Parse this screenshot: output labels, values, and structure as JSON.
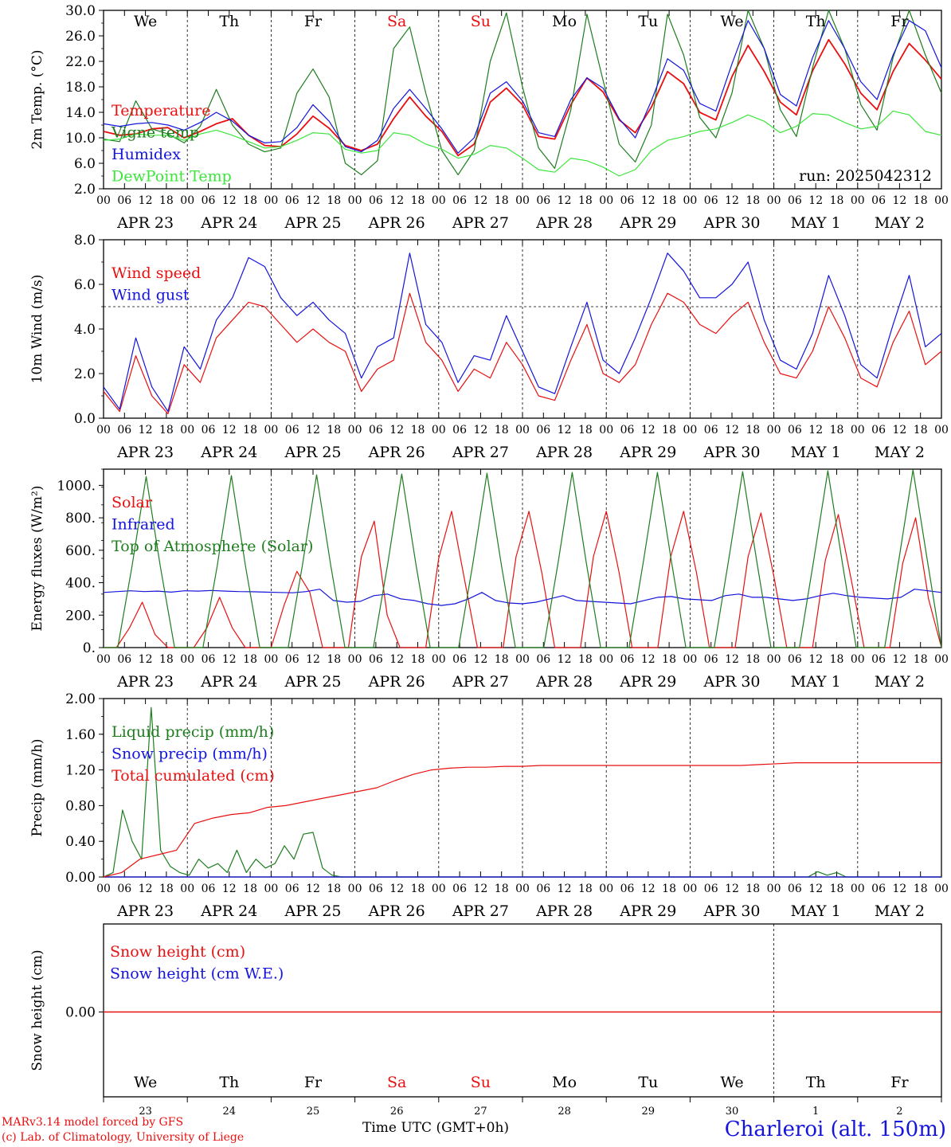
{
  "run_label": "run: 2025042312",
  "location_label": "Charleroi (alt. 150m)",
  "model_credit": "MARv3.14 model forced by GFS",
  "lab_credit": "(c) Lab. of Climatology, University of Liege",
  "time_label": "Time UTC (GMT+0h)",
  "colors": {
    "red": "#e81010",
    "green": "#1e7d1e",
    "blue": "#1414dc",
    "lime": "#3ce63c",
    "axis": "#000000"
  },
  "days": [
    {
      "dow": "We",
      "date": "APR 23",
      "num": "23",
      "weekend": false
    },
    {
      "dow": "Th",
      "date": "APR 24",
      "num": "24",
      "weekend": false
    },
    {
      "dow": "Fr",
      "date": "APR 25",
      "num": "25",
      "weekend": false
    },
    {
      "dow": "Sa",
      "date": "APR 26",
      "num": "26",
      "weekend": true
    },
    {
      "dow": "Su",
      "date": "APR 27",
      "num": "27",
      "weekend": true
    },
    {
      "dow": "Mo",
      "date": "APR 28",
      "num": "28",
      "weekend": false
    },
    {
      "dow": "Tu",
      "date": "APR 29",
      "num": "29",
      "weekend": false
    },
    {
      "dow": "We",
      "date": "APR 30",
      "num": "30",
      "weekend": false
    },
    {
      "dow": "Th",
      "date": "MAY  1",
      "num": "1",
      "weekend": false
    },
    {
      "dow": "Fr",
      "date": "MAY  2",
      "num": "2",
      "weekend": false
    }
  ],
  "hour_ticks": [
    "00",
    "06",
    "12",
    "18"
  ],
  "chart_data": [
    {
      "type": "line",
      "ylabel": "2m Temp. (°C)",
      "ylim": [
        2,
        30
      ],
      "yticks": [
        "2.0",
        "6.0",
        "10.0",
        "14.0",
        "18.0",
        "22.0",
        "26.0",
        "30.0"
      ],
      "series": [
        {
          "name": "Temperature",
          "color": "#e81010",
          "values": [
            11,
            10.4,
            10.6,
            11.4,
            11.6,
            10,
            11,
            12.2,
            13,
            10.4,
            8.8,
            8.6,
            10.6,
            13.4,
            11.5,
            8.8,
            8,
            9,
            13,
            16.4,
            13.4,
            11,
            7.2,
            9,
            15.6,
            17.8,
            15.2,
            10.2,
            9.8,
            15.2,
            19.4,
            17.2,
            12.8,
            10.8,
            14.8,
            20.4,
            18.5,
            14,
            12.8,
            19.6,
            24.5,
            20.4,
            15.6,
            13.6,
            20.5,
            25.4,
            21.6,
            17,
            14.4,
            20.4,
            24.8,
            22.2,
            19.2
          ]
        },
        {
          "name": "Vigne temp",
          "color": "#1e7d1e",
          "values": [
            9.8,
            9.4,
            15.8,
            11.4,
            10.6,
            9.2,
            11.8,
            17.6,
            12,
            9,
            7.8,
            8.4,
            17,
            20.8,
            16.4,
            6,
            4.2,
            6.4,
            24,
            27.4,
            17,
            8,
            4.2,
            8,
            22,
            29.6,
            18,
            8.4,
            5.2,
            14.4,
            29.4,
            19,
            9,
            6.2,
            12,
            29.4,
            23,
            13.2,
            10,
            17,
            30,
            24,
            14.4,
            10.2,
            21,
            30,
            24,
            15.2,
            11.2,
            22.6,
            30,
            23,
            17
          ]
        },
        {
          "name": "Humidex",
          "color": "#1414dc",
          "values": [
            12.2,
            11.8,
            12.2,
            12.4,
            12,
            11.2,
            12.4,
            14,
            12.6,
            10.4,
            9.2,
            9.4,
            11.6,
            15.2,
            12.6,
            8.6,
            7.8,
            9.6,
            14.6,
            17.6,
            14.6,
            11.4,
            7.6,
            10,
            17,
            18.8,
            15.8,
            10.8,
            10.2,
            16,
            19.4,
            17.8,
            13,
            10,
            15.8,
            22.4,
            20.6,
            15.4,
            14.2,
            21.6,
            28.4,
            24,
            16.8,
            15,
            22.6,
            28.4,
            24,
            18.8,
            16,
            23,
            28.4,
            26.8,
            21
          ]
        },
        {
          "name": "DewPoint Temp",
          "color": "#3ce63c",
          "values": [
            9.6,
            9.8,
            10.6,
            10.4,
            10.4,
            9.6,
            10.6,
            11.2,
            10.4,
            9.4,
            8.4,
            8.6,
            9.6,
            10.8,
            10.6,
            8.2,
            7.6,
            8,
            10.8,
            10.4,
            9,
            8.2,
            6.8,
            7.4,
            8.8,
            8.4,
            6.8,
            5,
            4.6,
            6.8,
            6.4,
            5.4,
            4,
            5,
            8,
            9.6,
            10.2,
            11,
            11.4,
            12.4,
            13.6,
            12.6,
            10.8,
            11.8,
            13.8,
            13.6,
            12.4,
            11.4,
            11.8,
            14.2,
            13.6,
            11,
            10.4
          ]
        }
      ]
    },
    {
      "type": "line",
      "ylabel": "10m Wind (m/s)",
      "ylim": [
        0,
        8
      ],
      "yticks": [
        "0.0",
        "2.0",
        "4.0",
        "6.0",
        "8.0"
      ],
      "reference_line": 5,
      "series": [
        {
          "name": "Wind speed",
          "color": "#e81010",
          "values": [
            1.2,
            0.3,
            2.8,
            1,
            0.2,
            2.4,
            1.6,
            3.6,
            4.4,
            5.2,
            5,
            4.2,
            3.4,
            4,
            3.4,
            3,
            1.2,
            2.2,
            2.6,
            5.6,
            3.4,
            2.6,
            1.2,
            2.2,
            1.8,
            3.4,
            2.4,
            1,
            0.8,
            2.6,
            4.2,
            2,
            1.6,
            2.4,
            4.2,
            5.6,
            5.2,
            4.2,
            3.8,
            4.6,
            5.2,
            3.4,
            2,
            1.8,
            3,
            5,
            3.6,
            1.8,
            1.4,
            3.4,
            4.8,
            2.4,
            3
          ]
        },
        {
          "name": "Wind gust",
          "color": "#1414dc",
          "values": [
            1.4,
            0.4,
            3.6,
            1.4,
            0.3,
            3.2,
            2.2,
            4.4,
            5.4,
            7.2,
            6.8,
            5.4,
            4.6,
            5.2,
            4.4,
            3.8,
            1.8,
            3.2,
            3.6,
            7.4,
            4.2,
            3.4,
            1.6,
            2.8,
            2.6,
            4.6,
            3,
            1.4,
            1.1,
            3.2,
            5.2,
            2.6,
            2,
            3.6,
            5.4,
            7.4,
            6.6,
            5.4,
            5.4,
            6,
            7,
            4.4,
            2.6,
            2.2,
            3.8,
            6.4,
            4.6,
            2.4,
            1.8,
            4.2,
            6.4,
            3.2,
            3.8
          ]
        }
      ]
    },
    {
      "type": "line",
      "ylabel": "Energy fluxes (W/m²)",
      "ylim": [
        0,
        1100
      ],
      "yticks": [
        "0.",
        "200.",
        "400.",
        "600.",
        "800.",
        "1000."
      ],
      "series": [
        {
          "name": "Solar",
          "color": "#e81010",
          "values": [
            0,
            0,
            120,
            280,
            80,
            0,
            0,
            0,
            120,
            310,
            120,
            0,
            0,
            0,
            260,
            470,
            340,
            0,
            0,
            0,
            560,
            780,
            200,
            0,
            0,
            0,
            550,
            840,
            420,
            0,
            0,
            0,
            560,
            840,
            460,
            0,
            0,
            0,
            560,
            840,
            460,
            0,
            0,
            0,
            560,
            840,
            460,
            0,
            0,
            0,
            560,
            830,
            440,
            0,
            0,
            0,
            540,
            820,
            420,
            0,
            0,
            0,
            520,
            800,
            300,
            0
          ]
        },
        {
          "name": "Infrared",
          "color": "#1414dc",
          "values": [
            340,
            345,
            350,
            345,
            348,
            342,
            350,
            348,
            352,
            348,
            345,
            344,
            342,
            340,
            338,
            345,
            360,
            290,
            280,
            285,
            320,
            330,
            300,
            290,
            270,
            260,
            270,
            300,
            340,
            290,
            275,
            270,
            280,
            300,
            320,
            290,
            285,
            280,
            275,
            270,
            290,
            310,
            315,
            300,
            295,
            290,
            320,
            330,
            310,
            310,
            300,
            290,
            300,
            320,
            335,
            320,
            310,
            305,
            300,
            310,
            360,
            350,
            340
          ]
        },
        {
          "name": "Top of Atmosphere (Solar)",
          "color": "#1e7d1e",
          "values": [
            0,
            0,
            500,
            1055,
            500,
            0,
            0,
            0,
            500,
            1060,
            500,
            0,
            0,
            0,
            505,
            1065,
            505,
            0,
            0,
            0,
            510,
            1070,
            510,
            0,
            0,
            0,
            515,
            1075,
            515,
            0,
            0,
            0,
            520,
            1080,
            520,
            0,
            0,
            0,
            525,
            1080,
            525,
            0,
            0,
            0,
            530,
            1085,
            530,
            0,
            0,
            0,
            535,
            1090,
            535,
            0,
            0,
            0,
            540,
            1095,
            540,
            0
          ]
        }
      ]
    },
    {
      "type": "line",
      "ylabel": "Precip (mm/h)",
      "ylim": [
        0,
        2
      ],
      "yticks": [
        "0.00",
        "0.40",
        "0.80",
        "1.20",
        "1.60",
        "2.00"
      ],
      "series": [
        {
          "name": "Liquid precip (mm/h)",
          "color": "#1e7d1e",
          "values": [
            0,
            0.05,
            0.75,
            0.4,
            0.2,
            1.9,
            0.3,
            0.12,
            0.05,
            0.02,
            0.2,
            0.1,
            0.15,
            0.05,
            0.3,
            0.05,
            0.2,
            0.1,
            0.15,
            0.35,
            0.2,
            0.48,
            0.5,
            0.1,
            0.02,
            0,
            0,
            0,
            0,
            0,
            0,
            0,
            0,
            0,
            0,
            0,
            0,
            0,
            0,
            0,
            0,
            0,
            0,
            0,
            0,
            0,
            0,
            0,
            0,
            0,
            0,
            0,
            0,
            0,
            0,
            0,
            0,
            0,
            0,
            0,
            0,
            0,
            0,
            0,
            0,
            0,
            0,
            0,
            0,
            0,
            0,
            0,
            0,
            0,
            0,
            0.06,
            0.02,
            0.05,
            0,
            0,
            0,
            0,
            0,
            0,
            0,
            0,
            0,
            0,
            0
          ]
        },
        {
          "name": "Snow precip (mm/h)",
          "color": "#1414dc",
          "values": [
            0,
            0,
            0,
            0,
            0,
            0,
            0,
            0,
            0,
            0,
            0,
            0,
            0,
            0,
            0,
            0,
            0,
            0,
            0,
            0,
            0,
            0,
            0,
            0,
            0,
            0,
            0,
            0,
            0,
            0,
            0,
            0,
            0,
            0,
            0,
            0,
            0,
            0,
            0,
            0,
            0,
            0,
            0,
            0,
            0,
            0,
            0,
            0,
            0,
            0,
            0,
            0,
            0,
            0,
            0,
            0,
            0,
            0,
            0,
            0,
            0,
            0,
            0,
            0,
            0,
            0,
            0,
            0,
            0,
            0,
            0,
            0,
            0,
            0,
            0,
            0,
            0,
            0,
            0,
            0,
            0,
            0,
            0,
            0,
            0,
            0,
            0,
            0,
            0
          ]
        },
        {
          "name": "Total cumulated (cm)",
          "color": "#e81010",
          "values": [
            0,
            0.05,
            0.2,
            0.25,
            0.3,
            0.6,
            0.66,
            0.7,
            0.72,
            0.78,
            0.8,
            0.84,
            0.88,
            0.92,
            0.96,
            1.0,
            1.08,
            1.15,
            1.2,
            1.22,
            1.23,
            1.23,
            1.24,
            1.24,
            1.25,
            1.25,
            1.25,
            1.25,
            1.25,
            1.25,
            1.25,
            1.25,
            1.25,
            1.25,
            1.25,
            1.25,
            1.26,
            1.27,
            1.28,
            1.28,
            1.28,
            1.28,
            1.28,
            1.28,
            1.28,
            1.28,
            1.28
          ]
        }
      ]
    },
    {
      "type": "line",
      "ylabel": "Snow height (cm)",
      "yticks": [
        "0.00"
      ],
      "series": [
        {
          "name": "Snow height (cm)",
          "color": "#e81010",
          "values": [
            0,
            0
          ]
        },
        {
          "name": "Snow height (cm W.E.)",
          "color": "#1414dc",
          "values": [
            0,
            0
          ]
        }
      ]
    }
  ]
}
